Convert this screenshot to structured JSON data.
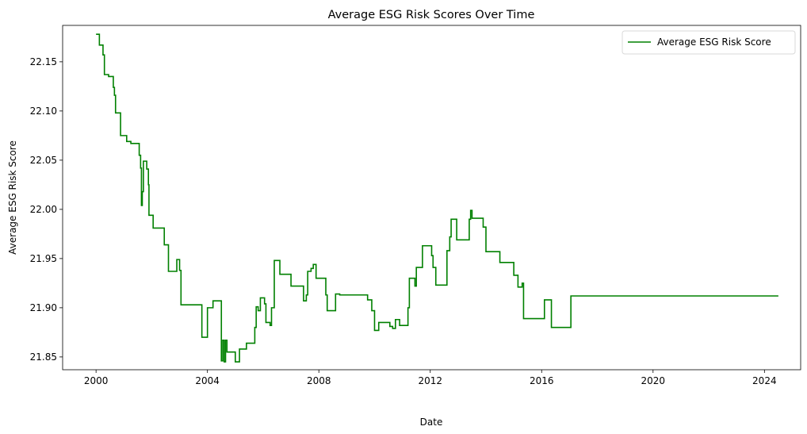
{
  "chart_data": {
    "type": "line",
    "title": "Average ESG Risk Scores Over Time",
    "xlabel": "Date",
    "ylabel": "Average ESG Risk Score",
    "xlim": [
      1998.8,
      2025.3
    ],
    "ylim": [
      21.837,
      22.187
    ],
    "x_ticks": [
      2000,
      2004,
      2008,
      2012,
      2016,
      2020,
      2024
    ],
    "x_tick_labels": [
      "2000",
      "2004",
      "2008",
      "2012",
      "2016",
      "2020",
      "2024"
    ],
    "y_ticks": [
      21.85,
      21.9,
      21.95,
      22.0,
      22.05,
      22.1,
      22.15
    ],
    "y_tick_labels": [
      "21.85",
      "21.90",
      "21.95",
      "22.00",
      "22.05",
      "22.10",
      "22.15"
    ],
    "grid": false,
    "legend_position": "upper right",
    "colors": {
      "series": "#008000",
      "axis": "#000000",
      "legend_border": "#d9d9d9"
    },
    "series": [
      {
        "name": "Average ESG Risk Score",
        "step": "post",
        "points": [
          [
            2000.0,
            22.178
          ],
          [
            2000.12,
            22.167
          ],
          [
            2000.25,
            22.157
          ],
          [
            2000.3,
            22.137
          ],
          [
            2000.45,
            22.135
          ],
          [
            2000.62,
            22.124
          ],
          [
            2000.66,
            22.116
          ],
          [
            2000.7,
            22.098
          ],
          [
            2000.88,
            22.075
          ],
          [
            2001.1,
            22.069
          ],
          [
            2001.25,
            22.067
          ],
          [
            2001.55,
            22.055
          ],
          [
            2001.6,
            22.042
          ],
          [
            2001.63,
            22.004
          ],
          [
            2001.66,
            22.018
          ],
          [
            2001.7,
            22.049
          ],
          [
            2001.82,
            22.041
          ],
          [
            2001.88,
            22.025
          ],
          [
            2001.9,
            21.994
          ],
          [
            2002.05,
            21.981
          ],
          [
            2002.45,
            21.964
          ],
          [
            2002.6,
            21.937
          ],
          [
            2002.9,
            21.949
          ],
          [
            2003.0,
            21.938
          ],
          [
            2003.05,
            21.903
          ],
          [
            2003.75,
            21.903
          ],
          [
            2003.8,
            21.87
          ],
          [
            2003.95,
            21.87
          ],
          [
            2004.0,
            21.9
          ],
          [
            2004.2,
            21.907
          ],
          [
            2004.45,
            21.907
          ],
          [
            2004.5,
            21.846
          ],
          [
            2004.55,
            21.867
          ],
          [
            2004.6,
            21.845
          ],
          [
            2004.65,
            21.867
          ],
          [
            2004.7,
            21.855
          ],
          [
            2004.95,
            21.855
          ],
          [
            2005.0,
            21.845
          ],
          [
            2005.15,
            21.858
          ],
          [
            2005.4,
            21.864
          ],
          [
            2005.7,
            21.88
          ],
          [
            2005.75,
            21.901
          ],
          [
            2005.82,
            21.897
          ],
          [
            2005.9,
            21.91
          ],
          [
            2006.05,
            21.904
          ],
          [
            2006.1,
            21.885
          ],
          [
            2006.25,
            21.882
          ],
          [
            2006.3,
            21.9
          ],
          [
            2006.4,
            21.948
          ],
          [
            2006.6,
            21.934
          ],
          [
            2007.0,
            21.922
          ],
          [
            2007.45,
            21.907
          ],
          [
            2007.55,
            21.913
          ],
          [
            2007.6,
            21.937
          ],
          [
            2007.72,
            21.94
          ],
          [
            2007.8,
            21.944
          ],
          [
            2007.9,
            21.93
          ],
          [
            2008.25,
            21.913
          ],
          [
            2008.3,
            21.897
          ],
          [
            2008.6,
            21.914
          ],
          [
            2008.75,
            21.913
          ],
          [
            2009.75,
            21.908
          ],
          [
            2009.9,
            21.897
          ],
          [
            2010.0,
            21.877
          ],
          [
            2010.15,
            21.885
          ],
          [
            2010.55,
            21.881
          ],
          [
            2010.65,
            21.879
          ],
          [
            2010.75,
            21.888
          ],
          [
            2010.9,
            21.882
          ],
          [
            2011.2,
            21.9
          ],
          [
            2011.25,
            21.93
          ],
          [
            2011.45,
            21.922
          ],
          [
            2011.5,
            21.941
          ],
          [
            2011.72,
            21.963
          ],
          [
            2012.05,
            21.953
          ],
          [
            2012.1,
            21.941
          ],
          [
            2012.2,
            21.923
          ],
          [
            2012.6,
            21.958
          ],
          [
            2012.7,
            21.972
          ],
          [
            2012.75,
            21.99
          ],
          [
            2012.95,
            21.969
          ],
          [
            2013.4,
            21.99
          ],
          [
            2013.45,
            21.999
          ],
          [
            2013.5,
            21.991
          ],
          [
            2013.9,
            21.982
          ],
          [
            2014.0,
            21.957
          ],
          [
            2014.5,
            21.946
          ],
          [
            2015.0,
            21.933
          ],
          [
            2015.15,
            21.921
          ],
          [
            2015.3,
            21.925
          ],
          [
            2015.35,
            21.889
          ],
          [
            2016.1,
            21.908
          ],
          [
            2016.35,
            21.88
          ],
          [
            2017.05,
            21.912
          ],
          [
            2024.5,
            21.912
          ]
        ]
      }
    ]
  }
}
